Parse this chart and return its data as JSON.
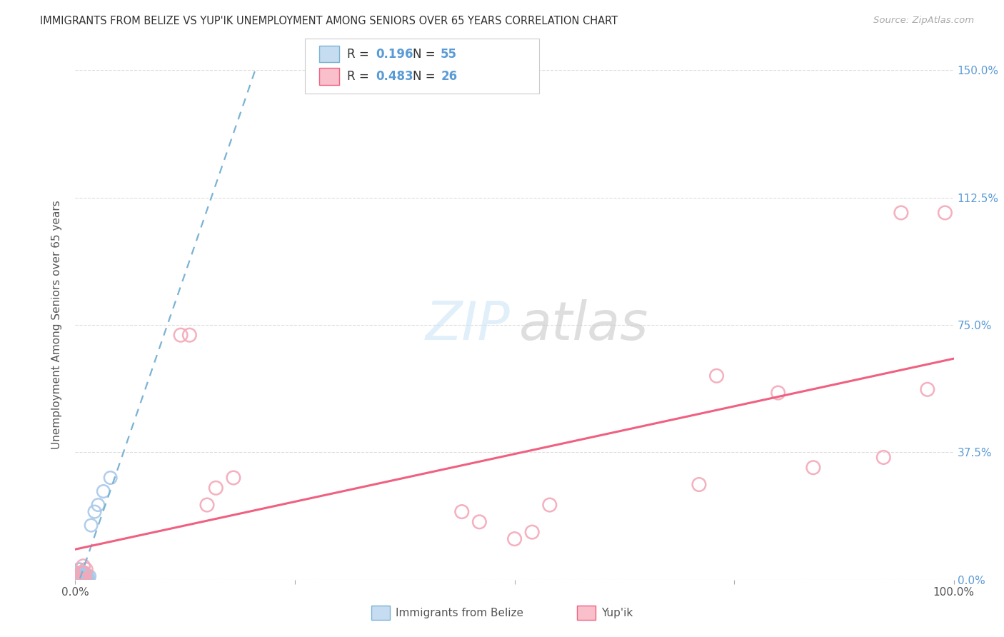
{
  "title": "IMMIGRANTS FROM BELIZE VS YUP'IK UNEMPLOYMENT AMONG SENIORS OVER 65 YEARS CORRELATION CHART",
  "source": "Source: ZipAtlas.com",
  "ylabel": "Unemployment Among Seniors over 65 years",
  "xlim": [
    0.0,
    1.0
  ],
  "ylim": [
    0.0,
    1.5
  ],
  "xtick_positions": [
    0.0,
    0.25,
    0.5,
    0.75,
    1.0
  ],
  "xtick_labels": [
    "0.0%",
    "",
    "",
    "",
    "100.0%"
  ],
  "ytick_positions": [
    0.0,
    0.375,
    0.75,
    1.125,
    1.5
  ],
  "ytick_labels": [
    "0.0%",
    "37.5%",
    "75.0%",
    "112.5%",
    "150.0%"
  ],
  "R_belize": 0.196,
  "N_belize": 55,
  "R_yupik": 0.483,
  "N_yupik": 26,
  "belize_scatter_color": "#a8c8e8",
  "belize_line_color": "#7ab3d4",
  "yupik_scatter_color": "#f4a8b8",
  "yupik_line_color": "#f06080",
  "watermark_zip_color": "#cce8f5",
  "watermark_atlas_color": "#c8c8c8",
  "belize_x": [
    0.001,
    0.001,
    0.001,
    0.002,
    0.002,
    0.002,
    0.002,
    0.002,
    0.003,
    0.003,
    0.003,
    0.003,
    0.003,
    0.004,
    0.004,
    0.004,
    0.004,
    0.004,
    0.005,
    0.005,
    0.005,
    0.005,
    0.005,
    0.006,
    0.006,
    0.006,
    0.006,
    0.007,
    0.007,
    0.007,
    0.007,
    0.008,
    0.008,
    0.008,
    0.008,
    0.009,
    0.009,
    0.009,
    0.01,
    0.01,
    0.01,
    0.01,
    0.011,
    0.011,
    0.012,
    0.012,
    0.013,
    0.014,
    0.015,
    0.016,
    0.018,
    0.022,
    0.026,
    0.032,
    0.04
  ],
  "belize_y": [
    0.0,
    0.0,
    0.01,
    0.0,
    0.0,
    0.0,
    0.01,
    0.02,
    0.0,
    0.0,
    0.0,
    0.01,
    0.02,
    0.0,
    0.0,
    0.01,
    0.02,
    0.03,
    0.0,
    0.0,
    0.01,
    0.02,
    0.03,
    0.0,
    0.0,
    0.01,
    0.02,
    0.0,
    0.0,
    0.01,
    0.02,
    0.0,
    0.0,
    0.01,
    0.02,
    0.0,
    0.0,
    0.01,
    0.0,
    0.0,
    0.01,
    0.02,
    0.0,
    0.01,
    0.0,
    0.01,
    0.0,
    0.01,
    0.0,
    0.01,
    0.16,
    0.2,
    0.22,
    0.26,
    0.3
  ],
  "yupik_x": [
    0.004,
    0.005,
    0.007,
    0.008,
    0.009,
    0.01,
    0.011,
    0.012,
    0.12,
    0.13,
    0.15,
    0.16,
    0.18,
    0.44,
    0.46,
    0.5,
    0.52,
    0.54,
    0.71,
    0.73,
    0.8,
    0.84,
    0.92,
    0.94,
    0.97,
    0.99
  ],
  "yupik_y": [
    0.0,
    0.0,
    0.02,
    0.0,
    0.04,
    0.02,
    0.0,
    0.03,
    0.72,
    0.72,
    0.22,
    0.27,
    0.3,
    0.2,
    0.17,
    0.12,
    0.14,
    0.22,
    0.28,
    0.6,
    0.55,
    0.33,
    0.36,
    1.08,
    0.56,
    1.08
  ]
}
